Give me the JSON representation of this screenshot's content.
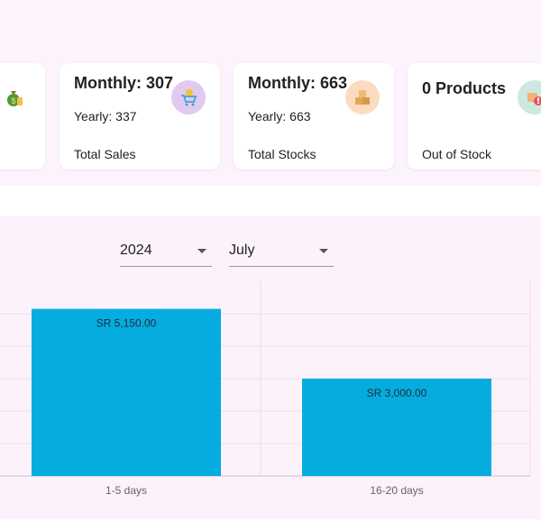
{
  "cards": [
    {
      "icon": "money-bag-icon",
      "icon_bg": "#bfe6f7"
    },
    {
      "main": "Monthly: 307",
      "sub": "Yearly: 337",
      "foot": "Total Sales",
      "icon": "shopping-cart-icon",
      "icon_bg": "#e2c9ef"
    },
    {
      "main": "Monthly: 663",
      "sub": "Yearly: 663",
      "foot": "Total Stocks",
      "icon": "boxes-icon",
      "icon_bg": "#fbdcc0"
    },
    {
      "main": "0 Products",
      "foot": "Out of Stock",
      "icon": "box-alert-icon",
      "icon_bg": "#cde9df"
    }
  ],
  "filters": {
    "year": "2024",
    "month": "July"
  },
  "chart_data": {
    "type": "bar",
    "categories": [
      "1-5 days",
      "16-20 days"
    ],
    "values": [
      5150,
      3000
    ],
    "data_labels": [
      "SR 5,150.00",
      "SR 3,000.00"
    ],
    "ylim": [
      0,
      6000
    ],
    "grid": true,
    "bar_color": "#05acdf"
  }
}
